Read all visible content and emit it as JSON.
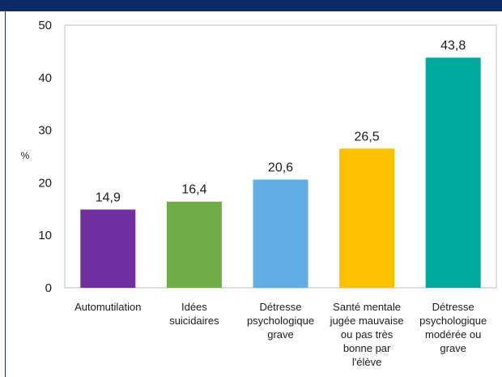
{
  "chart_data": {
    "type": "bar",
    "title": "",
    "ylabel": "%",
    "xlabel": "",
    "ylim": [
      0,
      50
    ],
    "yticks": [
      0,
      10,
      20,
      30,
      40,
      50
    ],
    "grid": false,
    "categories": [
      [
        "Automutilation"
      ],
      [
        "Idées",
        "suicidaires"
      ],
      [
        "Détresse",
        "psychologique",
        "grave"
      ],
      [
        "Santé mentale",
        "jugée mauvaise",
        "ou pas très",
        "bonne par",
        "l'élève"
      ],
      [
        "Détresse",
        "psychologique",
        "modérée ou",
        "grave"
      ]
    ],
    "values": [
      14.9,
      16.4,
      20.6,
      26.5,
      43.8
    ],
    "value_labels": [
      "14,9",
      "16,4",
      "20,6",
      "26,5",
      "43,8"
    ],
    "colors": [
      "#7030a0",
      "#70ad47",
      "#62aee4",
      "#ffc000",
      "#00a99d"
    ]
  },
  "colors": {
    "header_bar": "#0b2a66",
    "plot_border": "#bfbfbf"
  }
}
